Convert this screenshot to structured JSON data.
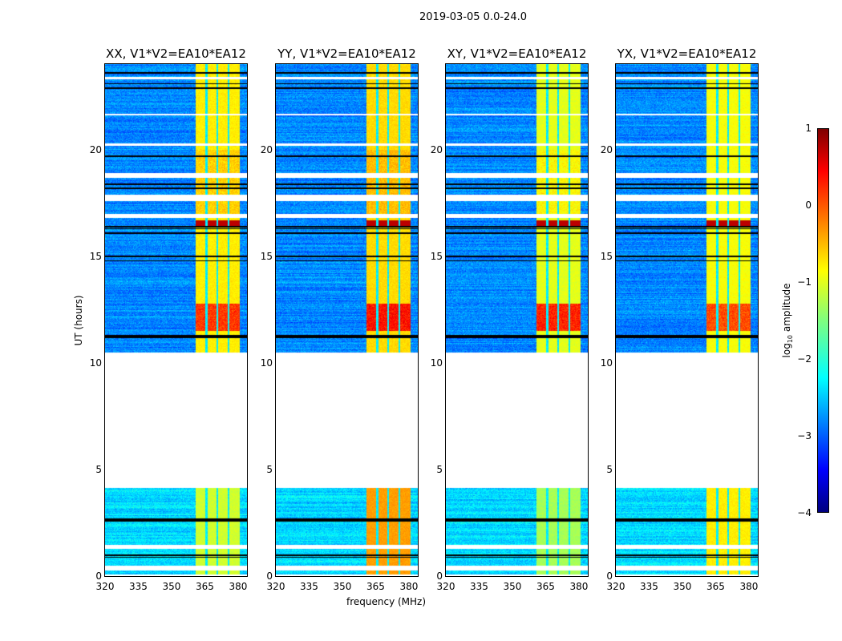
{
  "suptitle": "2019-03-05 0.0-24.0",
  "xlabel": "frequency (MHz)",
  "ylabel": "UT (hours)",
  "colorbar": {
    "label_prefix": "log",
    "label_sub": "10",
    "label_suffix": " amplitude",
    "ticks": [
      "1",
      "0",
      "−1",
      "−2",
      "−3",
      "−4"
    ],
    "range": [
      -4,
      1
    ],
    "colormap": "jet"
  },
  "chart_data": {
    "type": "heatmap",
    "xlim": [
      320,
      384
    ],
    "ylim": [
      0,
      24
    ],
    "xticks": [
      "320",
      "335",
      "350",
      "365",
      "380"
    ],
    "yticks": [
      "0",
      "5",
      "10",
      "15",
      "20"
    ],
    "panels": [
      {
        "title": "XX, V1*V2=EA10*EA12",
        "band_level": -0.8,
        "burst_level": 0.1,
        "low_band_level": -1.1
      },
      {
        "title": "YY, V1*V2=EA10*EA12",
        "band_level": -0.7,
        "burst_level": 0.3,
        "low_band_level": -0.4
      },
      {
        "title": "XY, V1*V2=EA10*EA12",
        "band_level": -1.0,
        "burst_level": 0.2,
        "low_band_level": -1.3
      },
      {
        "title": "YX, V1*V2=EA10*EA12",
        "band_level": -0.9,
        "burst_level": 0.0,
        "low_band_level": -0.8
      }
    ],
    "background_level": -2.7,
    "rfi_band_mhz": [
      360.5,
      380.5
    ],
    "subband_gaps_mhz": [
      365.5,
      370.5,
      375.5
    ],
    "burst_hours": [
      11.5,
      12.8
    ],
    "strong_hours": [
      16.45,
      16.7
    ],
    "blank_hours": [
      [
        0,
        0.08
      ],
      [
        0.3,
        0.5
      ],
      [
        1.3,
        1.5
      ],
      [
        4.15,
        10.5
      ],
      [
        16.8,
        17.0
      ],
      [
        17.6,
        17.9
      ],
      [
        18.7,
        18.9
      ],
      [
        20.2,
        20.3
      ],
      [
        21.6,
        21.7
      ],
      [
        23.3,
        23.4
      ]
    ],
    "flagged_hours": [
      0.9,
      1.0,
      2.6,
      2.7,
      11.2,
      11.3,
      14.8,
      15.0,
      16.1,
      16.3,
      16.4,
      18.2,
      18.4,
      19.7,
      22.9,
      23.1,
      23.6
    ]
  }
}
